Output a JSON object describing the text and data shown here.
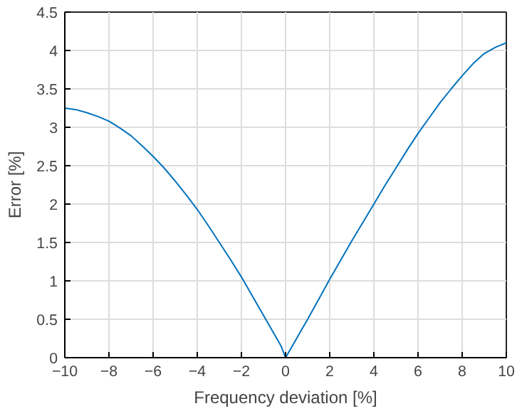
{
  "chart_data": {
    "type": "line",
    "xlabel": "Frequency deviation [%]",
    "ylabel": "Error [%]",
    "x": [
      -10,
      -9.5,
      -9,
      -8.5,
      -8,
      -7.5,
      -7,
      -6.5,
      -6,
      -5.5,
      -5,
      -4.5,
      -4,
      -3.5,
      -3,
      -2.5,
      -2,
      -1.5,
      -1,
      -0.5,
      -0.2,
      0,
      0.2,
      0.5,
      1,
      1.5,
      2,
      2.5,
      3,
      3.5,
      4,
      4.5,
      5,
      5.5,
      6,
      6.5,
      7,
      7.5,
      8,
      8.5,
      9,
      9.5,
      10
    ],
    "series": [
      {
        "color": "#0072bd",
        "values": [
          3.25,
          3.23,
          3.19,
          3.14,
          3.08,
          2.99,
          2.89,
          2.76,
          2.62,
          2.47,
          2.3,
          2.12,
          1.93,
          1.72,
          1.5,
          1.28,
          1.05,
          0.8,
          0.55,
          0.3,
          0.15,
          0.0,
          0.1,
          0.25,
          0.5,
          0.76,
          1.02,
          1.27,
          1.52,
          1.76,
          2.0,
          2.24,
          2.47,
          2.7,
          2.92,
          3.12,
          3.32,
          3.5,
          3.67,
          3.83,
          3.96,
          4.04,
          4.1
        ]
      }
    ],
    "xlim": [
      -10,
      10
    ],
    "ylim": [
      0,
      4.5
    ],
    "xticks": [
      -10,
      -8,
      -6,
      -4,
      -2,
      0,
      2,
      4,
      6,
      8,
      10
    ],
    "yticks": [
      0,
      0.5,
      1,
      1.5,
      2,
      2.5,
      3,
      3.5,
      4,
      4.5
    ],
    "grid": true
  }
}
